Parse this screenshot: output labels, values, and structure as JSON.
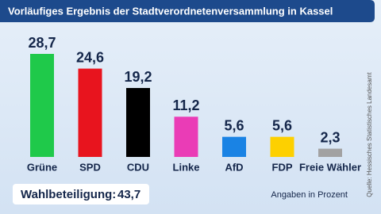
{
  "chart_data": {
    "type": "bar",
    "title": "Vorläufiges Ergebnis der Stadtverordnetenversammlung in Kassel",
    "categories": [
      "Grüne",
      "SPD",
      "CDU",
      "Linke",
      "AfD",
      "FDP",
      "Freie Wähler"
    ],
    "values": [
      28.7,
      24.6,
      19.2,
      11.2,
      5.6,
      5.6,
      2.3
    ],
    "value_labels": [
      "28,7",
      "24,6",
      "19,2",
      "11,2",
      "5,6",
      "5,6",
      "2,3"
    ],
    "colors": [
      "#1fc94a",
      "#e8141e",
      "#000000",
      "#ea3cb6",
      "#1a83e4",
      "#fdd000",
      "#a2a2a2"
    ],
    "turnout_label": "Wahlbeteiligung:",
    "turnout_value": "43,7",
    "note": "Angaben in Prozent",
    "source": "Quelle: Hessisches Statistisches Landesamt"
  }
}
